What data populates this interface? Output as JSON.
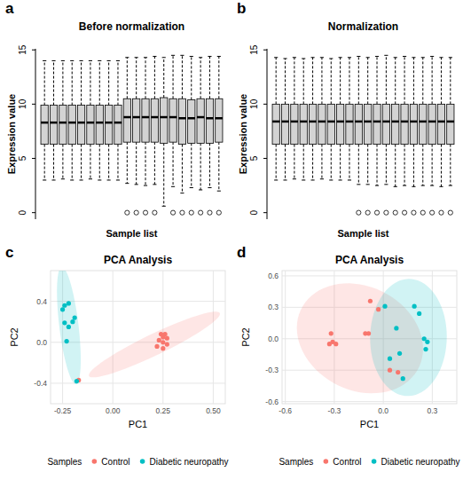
{
  "chart_data": [
    {
      "type": "box",
      "annotations": [
        "a"
      ],
      "title": "Before normalization",
      "xlabel": "Sample list",
      "ylabel": "Expression value",
      "categories": [
        null,
        null,
        null,
        null,
        null,
        null,
        null,
        null,
        null,
        null,
        null,
        null,
        null,
        null,
        null,
        null,
        null,
        null,
        null,
        null
      ],
      "whisker_low": [
        3.0,
        3.0,
        3.1,
        3.0,
        3.0,
        3.1,
        3.0,
        3.0,
        3.0,
        2.7,
        2.6,
        2.5,
        2.6,
        0.6,
        2.4,
        1.8,
        2.3,
        2.1,
        2.3,
        2.0
      ],
      "q1": [
        6.3,
        6.3,
        6.3,
        6.3,
        6.3,
        6.3,
        6.3,
        6.3,
        6.3,
        6.5,
        6.5,
        6.5,
        6.5,
        6.4,
        6.5,
        6.3,
        6.4,
        6.4,
        6.4,
        6.5
      ],
      "median": [
        8.3,
        8.3,
        8.3,
        8.3,
        8.3,
        8.3,
        8.3,
        8.3,
        8.3,
        8.8,
        8.8,
        8.8,
        8.8,
        8.8,
        8.8,
        8.7,
        8.7,
        8.8,
        8.7,
        8.7
      ],
      "q3": [
        9.9,
        9.9,
        9.9,
        9.9,
        9.9,
        9.9,
        9.9,
        9.9,
        9.9,
        10.5,
        10.5,
        10.5,
        10.5,
        10.6,
        10.5,
        10.5,
        10.4,
        10.5,
        10.5,
        10.5
      ],
      "whisker_high": [
        14.0,
        14.0,
        14.0,
        14.0,
        14.0,
        14.0,
        14.0,
        14.0,
        14.0,
        14.3,
        14.3,
        14.3,
        14.4,
        14.3,
        14.5,
        14.5,
        14.4,
        14.3,
        14.4,
        14.4
      ],
      "outliers": [
        [],
        [],
        [],
        [],
        [],
        [],
        [],
        [],
        [],
        [
          0
        ],
        [
          0
        ],
        [
          0
        ],
        [
          0
        ],
        [],
        [
          0
        ],
        [
          0
        ],
        [
          0
        ],
        [
          0
        ],
        [
          0
        ],
        [
          0
        ]
      ],
      "color": "#D3D3D3",
      "ylim": [
        -0.6,
        15.1
      ],
      "yticks": [
        0,
        5,
        10,
        15
      ],
      "tick_labels": "y",
      "grid": false
    },
    {
      "type": "box",
      "annotations": [
        "b"
      ],
      "title": "Normalization",
      "xlabel": "Sample list",
      "ylabel": "Expression value",
      "categories": [
        null,
        null,
        null,
        null,
        null,
        null,
        null,
        null,
        null,
        null,
        null,
        null,
        null,
        null,
        null,
        null,
        null,
        null,
        null,
        null
      ],
      "whisker_low": [
        3.0,
        3.0,
        3.1,
        3.0,
        3.0,
        3.1,
        3.0,
        3.0,
        3.0,
        2.6,
        2.6,
        2.5,
        2.6,
        2.4,
        2.5,
        2.4,
        2.5,
        2.5,
        2.4,
        2.5
      ],
      "q1": [
        6.3,
        6.3,
        6.3,
        6.3,
        6.3,
        6.3,
        6.3,
        6.3,
        6.3,
        6.3,
        6.3,
        6.3,
        6.3,
        6.3,
        6.3,
        6.3,
        6.3,
        6.3,
        6.3,
        6.3
      ],
      "median": [
        8.4,
        8.4,
        8.4,
        8.4,
        8.4,
        8.4,
        8.4,
        8.4,
        8.4,
        8.4,
        8.4,
        8.4,
        8.4,
        8.4,
        8.4,
        8.4,
        8.4,
        8.4,
        8.4,
        8.4
      ],
      "q3": [
        10.0,
        10.0,
        10.0,
        10.0,
        10.0,
        10.0,
        10.0,
        10.0,
        10.0,
        10.0,
        10.0,
        10.0,
        10.0,
        10.0,
        10.0,
        10.0,
        10.0,
        10.0,
        10.0,
        10.0
      ],
      "whisker_high": [
        14.3,
        14.2,
        14.3,
        14.2,
        14.3,
        14.3,
        14.2,
        14.3,
        14.3,
        14.4,
        14.3,
        14.4,
        14.5,
        14.3,
        14.4,
        14.3,
        14.3,
        14.4,
        14.3,
        14.3
      ],
      "outliers": [
        [],
        [],
        [],
        [],
        [],
        [],
        [],
        [],
        [],
        [
          0
        ],
        [
          0
        ],
        [
          0
        ],
        [
          0
        ],
        [
          0
        ],
        [
          0
        ],
        [
          0
        ],
        [
          0
        ],
        [
          0
        ],
        [
          0
        ],
        [
          0
        ]
      ],
      "color": "#D3D3D3",
      "ylim": [
        -0.6,
        15.1
      ],
      "yticks": [
        0,
        5,
        10,
        15
      ],
      "tick_labels": "y",
      "grid": false
    },
    {
      "type": "scatter",
      "annotations": [
        "c"
      ],
      "title": "PCA Analysis",
      "xlabel": "PC1",
      "ylabel": "PC2",
      "legend_title": "Samples",
      "series": [
        {
          "name": "Control",
          "color": "#F8766D",
          "marker": "circle",
          "x": [
            0.24,
            0.26,
            0.25,
            0.27,
            0.23,
            0.25,
            0.27,
            0.22,
            0.25,
            -0.17
          ],
          "values": [
            0.08,
            0.08,
            0.05,
            0.04,
            0.02,
            0.0,
            -0.02,
            -0.04,
            -0.06,
            -0.37
          ]
        },
        {
          "name": "Diabetic neuropathy",
          "color": "#00BFC4",
          "marker": "circle",
          "x": [
            -0.24,
            -0.22,
            -0.25,
            -0.24,
            -0.2,
            -0.22,
            -0.23,
            -0.19,
            -0.18
          ],
          "values": [
            0.36,
            0.38,
            0.32,
            0.19,
            0.2,
            0.15,
            0.01,
            0.24,
            -0.38
          ]
        }
      ],
      "xlim": [
        -0.31,
        0.56
      ],
      "ylim": [
        -0.6,
        0.7
      ],
      "xticks": [
        -0.25,
        {
          "value": 0,
          "label": "0.00"
        },
        0.25,
        {
          "value": 0.5,
          "label": "0.50"
        }
      ],
      "yticks": [
        -0.4,
        {
          "value": 0,
          "label": "0.0"
        },
        0.4
      ],
      "grid": true,
      "legend": "bottom"
    },
    {
      "type": "scatter",
      "annotations": [
        "d"
      ],
      "title": "PCA Analysis",
      "xlabel": "PC1",
      "ylabel": "PC2",
      "legend_title": "Samples",
      "series": [
        {
          "name": "Control",
          "color": "#F8766D",
          "marker": "circle",
          "x": [
            -0.33,
            -0.31,
            -0.29,
            -0.32,
            -0.11,
            -0.09,
            -0.08,
            -0.03,
            0.04,
            0.09
          ],
          "values": [
            -0.05,
            -0.03,
            -0.05,
            0.05,
            0.05,
            0.05,
            0.36,
            0.28,
            -0.3,
            -0.32
          ]
        },
        {
          "name": "Diabetic neuropathy",
          "color": "#00BFC4",
          "marker": "circle",
          "x": [
            0.01,
            0.19,
            0.22,
            0.25,
            0.27,
            0.26,
            0.08,
            0.1,
            0.04,
            0.12
          ],
          "values": [
            0.31,
            0.31,
            0.24,
            0.0,
            -0.03,
            -0.1,
            0.1,
            -0.14,
            -0.19,
            -0.38
          ]
        }
      ],
      "xlim": [
        -0.62,
        0.45
      ],
      "ylim": [
        -0.62,
        0.65
      ],
      "xticks": [
        -0.6,
        -0.3,
        {
          "value": 0,
          "label": "0.0"
        },
        0.3
      ],
      "yticks": [
        -0.6,
        -0.3,
        {
          "value": 0,
          "label": "0.0"
        },
        0.3,
        0.6
      ],
      "grid": true,
      "legend": "bottom"
    }
  ]
}
